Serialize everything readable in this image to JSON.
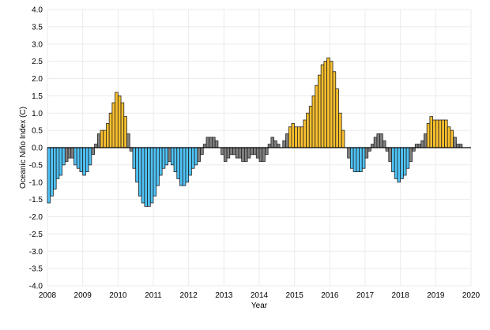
{
  "chart_data": {
    "type": "bar",
    "title": "",
    "xlabel": "Year",
    "ylabel": "Oceanic Niño Index (C)",
    "ylim": [
      -4.0,
      4.0
    ],
    "xlim": [
      2008,
      2020
    ],
    "grid": true,
    "yticks": [
      "4.0",
      "3.5",
      "3.0",
      "2.5",
      "2.0",
      "1.5",
      "1.0",
      "0.5",
      "0.0",
      "-0.5",
      "-1.0",
      "-1.5",
      "-2.0",
      "-2.5",
      "-3.0",
      "-3.5",
      "-4.0"
    ],
    "xticks": [
      "2008",
      "2009",
      "2010",
      "2011",
      "2012",
      "2013",
      "2014",
      "2015",
      "2016",
      "2017",
      "2018",
      "2019",
      "2020"
    ],
    "start_year": 2008,
    "monthly_values": [
      -1.6,
      -1.4,
      -1.2,
      -0.9,
      -0.8,
      -0.5,
      -0.4,
      -0.3,
      -0.3,
      -0.5,
      -0.6,
      -0.7,
      -0.8,
      -0.7,
      -0.5,
      -0.2,
      0.1,
      0.4,
      0.5,
      0.5,
      0.7,
      1.0,
      1.3,
      1.6,
      1.5,
      1.3,
      0.9,
      0.4,
      -0.1,
      -0.6,
      -1.0,
      -1.4,
      -1.6,
      -1.7,
      -1.7,
      -1.6,
      -1.4,
      -1.1,
      -0.8,
      -0.6,
      -0.5,
      -0.4,
      -0.5,
      -0.7,
      -0.9,
      -1.1,
      -1.1,
      -1.0,
      -0.8,
      -0.6,
      -0.5,
      -0.4,
      -0.2,
      0.1,
      0.3,
      0.3,
      0.3,
      0.2,
      0.0,
      -0.2,
      -0.4,
      -0.3,
      -0.2,
      -0.2,
      -0.3,
      -0.3,
      -0.4,
      -0.4,
      -0.3,
      -0.2,
      -0.2,
      -0.3,
      -0.4,
      -0.4,
      -0.2,
      0.1,
      0.3,
      0.2,
      0.1,
      0.0,
      0.2,
      0.4,
      0.6,
      0.7,
      0.6,
      0.6,
      0.6,
      0.8,
      1.0,
      1.2,
      1.5,
      1.8,
      2.1,
      2.4,
      2.5,
      2.6,
      2.5,
      2.2,
      1.7,
      1.0,
      0.5,
      0.0,
      -0.3,
      -0.6,
      -0.7,
      -0.7,
      -0.7,
      -0.6,
      -0.3,
      -0.1,
      0.1,
      0.3,
      0.4,
      0.4,
      0.2,
      -0.1,
      -0.4,
      -0.7,
      -0.9,
      -1.0,
      -0.9,
      -0.8,
      -0.6,
      -0.4,
      -0.1,
      0.1,
      0.1,
      0.2,
      0.4,
      0.7,
      0.9,
      0.8,
      0.8,
      0.8,
      0.8,
      0.8,
      0.6,
      0.5,
      0.3,
      0.1,
      0.1
    ],
    "colors": {
      "el_nino": "#fbc02d",
      "la_nina": "#4fc3f7",
      "neutral": "#808080",
      "grid": "#ebebeb"
    }
  }
}
